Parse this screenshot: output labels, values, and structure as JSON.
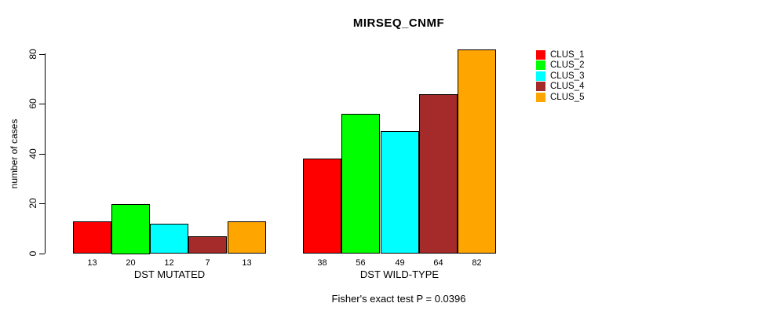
{
  "title": "MIRSEQ_CNMF",
  "y_axis": {
    "label": "number of cases",
    "ticks": [
      0,
      20,
      40,
      60,
      80
    ]
  },
  "footer": "Fisher's exact test P = 0.0396",
  "chart_data": {
    "type": "bar",
    "title": "MIRSEQ_CNMF",
    "xlabel": "",
    "ylabel": "number of cases",
    "ylim": [
      0,
      80
    ],
    "grid": false,
    "legend_position": "right",
    "categories": [
      "DST MUTATED",
      "DST WILD-TYPE"
    ],
    "series": [
      {
        "name": "CLUS_1",
        "color": "#FF0000",
        "values": [
          13,
          38
        ]
      },
      {
        "name": "CLUS_2",
        "color": "#00FF00",
        "values": [
          20,
          56
        ]
      },
      {
        "name": "CLUS_3",
        "color": "#00FFFF",
        "values": [
          12,
          49
        ]
      },
      {
        "name": "CLUS_4",
        "color": "#A52A2A",
        "values": [
          7,
          64
        ]
      },
      {
        "name": "CLUS_5",
        "color": "#FFA500",
        "values": [
          13,
          82
        ]
      }
    ],
    "bar_value_labels": true,
    "annotation": "Fisher's exact test P = 0.0396"
  }
}
